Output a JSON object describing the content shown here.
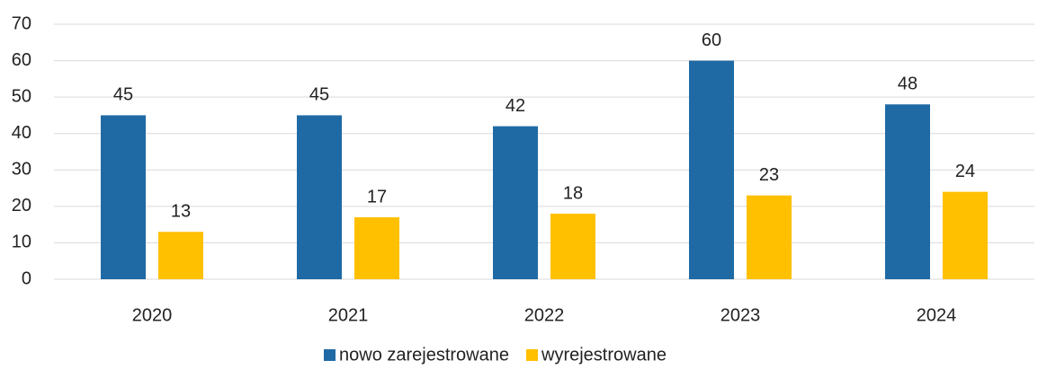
{
  "chart_data": {
    "type": "bar",
    "categories": [
      "2020",
      "2021",
      "2022",
      "2023",
      "2024"
    ],
    "series": [
      {
        "name": "nowo zarejestrowane",
        "color": "#1f6aa5",
        "values": [
          45,
          45,
          42,
          60,
          48
        ]
      },
      {
        "name": "wyrejestrowane",
        "color": "#ffc000",
        "values": [
          13,
          17,
          18,
          23,
          24
        ]
      }
    ],
    "ylim": [
      0,
      70
    ],
    "yticks": [
      0,
      10,
      20,
      30,
      40,
      50,
      60,
      70
    ],
    "grid": true,
    "legend": "bottom"
  }
}
